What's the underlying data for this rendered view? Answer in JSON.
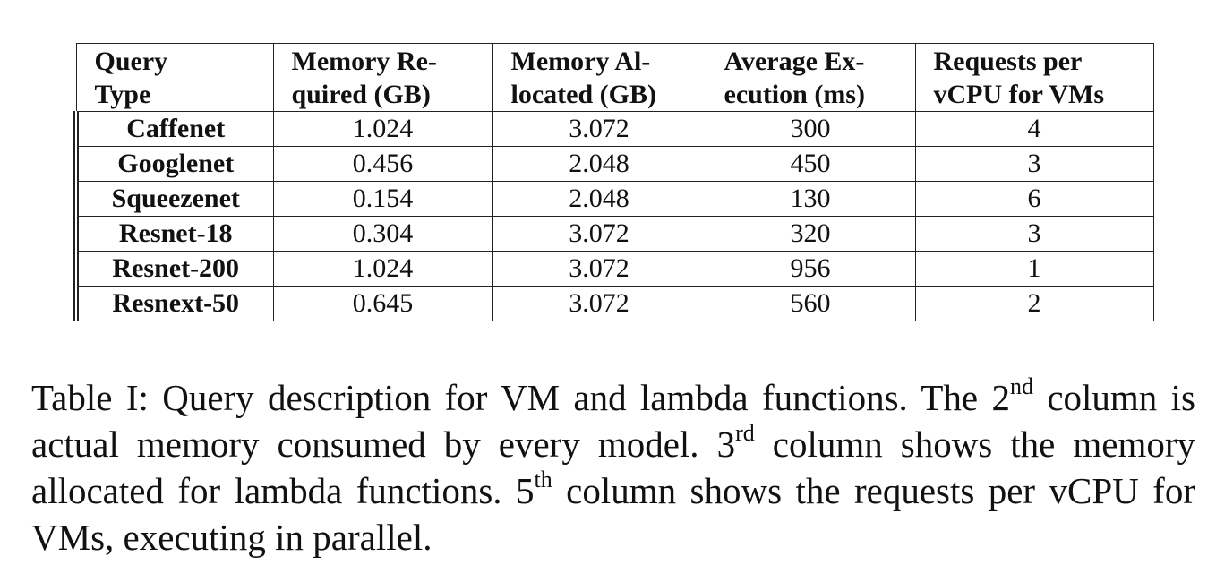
{
  "table": {
    "header": [
      [
        "Query",
        "Type"
      ],
      [
        "Memory Re-",
        "quired (GB)"
      ],
      [
        "Memory Al-",
        "located (GB)"
      ],
      [
        "Average Ex-",
        "ecution (ms)"
      ],
      [
        "Requests per",
        "vCPU for VMs"
      ]
    ],
    "rows": [
      [
        "Caffenet",
        "1.024",
        "3.072",
        "300",
        "4"
      ],
      [
        "Googlenet",
        "0.456",
        "2.048",
        "450",
        "3"
      ],
      [
        "Squeezenet",
        "0.154",
        "2.048",
        "130",
        "6"
      ],
      [
        "Resnet-18",
        "0.304",
        "3.072",
        "320",
        "3"
      ],
      [
        "Resnet-200",
        "1.024",
        "3.072",
        "956",
        "1"
      ],
      [
        "Resnext-50",
        "0.645",
        "3.072",
        "560",
        "2"
      ]
    ]
  },
  "caption": [
    {
      "text": "Table I: Query description for VM and lambda functions. The 2"
    },
    {
      "sup": "nd"
    },
    {
      "text": " column is actual memory consumed by every model. 3"
    },
    {
      "sup": "rd"
    },
    {
      "text": " column shows the memory allocated for lambda functions. 5"
    },
    {
      "sup": "th"
    },
    {
      "text": " column shows the requests per vCPU for VMs, executing in parallel."
    }
  ]
}
